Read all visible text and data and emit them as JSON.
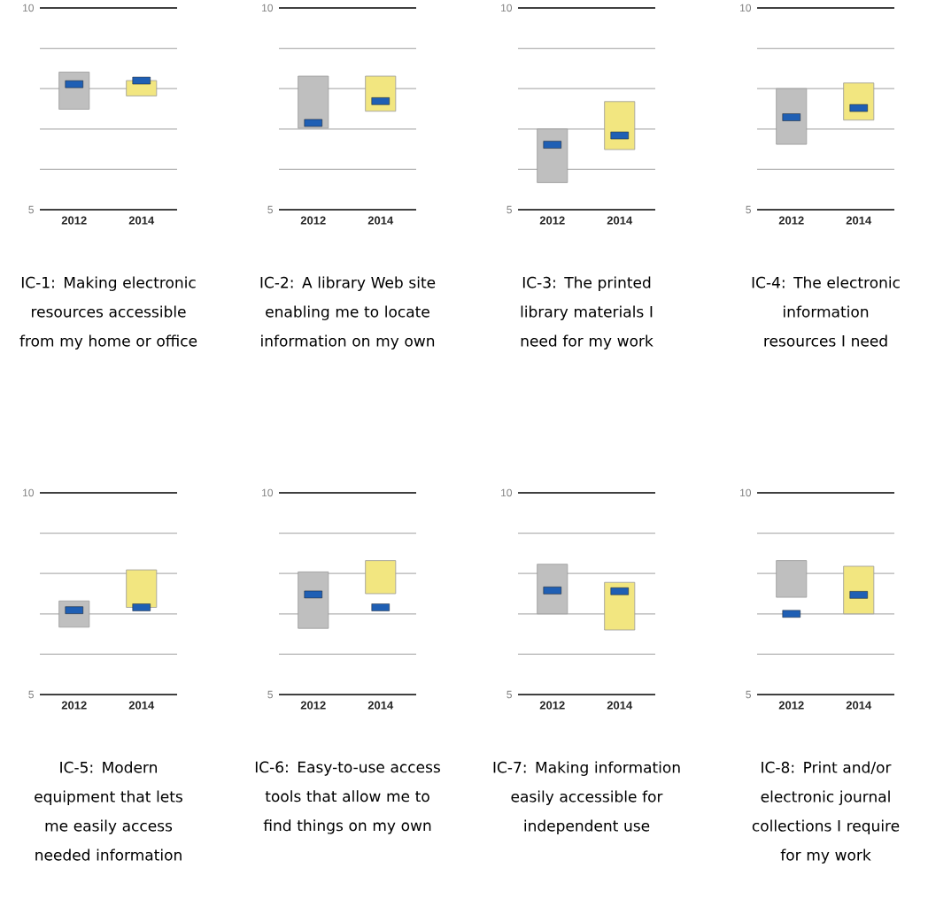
{
  "chart_data": [
    {
      "type": "bar",
      "title": "IC-1: Making electronic resources accessible from my home or office",
      "categories": [
        "2012",
        "2014"
      ],
      "ylim": [
        5,
        10
      ],
      "yticks": [
        5,
        {
          "value": 6,
          "label": null
        },
        {
          "value": 7,
          "label": null
        },
        {
          "value": 8,
          "label": null
        },
        {
          "value": 9,
          "label": null
        },
        10
      ],
      "grid": "y",
      "series": [
        {
          "type": "bar",
          "colors": [
            "#bfbfbf",
            "#f2e680"
          ],
          "base": [
            7.49,
            7.82
          ],
          "values": [
            0.92,
            0.38
          ]
        },
        {
          "type": "scatter",
          "color": "#1f5fb4",
          "values": [
            8.11,
            8.2
          ]
        }
      ]
    },
    {
      "type": "bar",
      "title": "IC-2: A library Web site enabling me to locate information on my own",
      "categories": [
        "2012",
        "2014"
      ],
      "ylim": [
        5,
        10
      ],
      "yticks": [
        5,
        {
          "value": 6,
          "label": null
        },
        {
          "value": 7,
          "label": null
        },
        {
          "value": 8,
          "label": null
        },
        {
          "value": 9,
          "label": null
        },
        10
      ],
      "grid": "y",
      "series": [
        {
          "type": "bar",
          "colors": [
            "#bfbfbf",
            "#f2e680"
          ],
          "base": [
            7.02,
            7.44
          ],
          "values": [
            1.29,
            0.87
          ]
        },
        {
          "type": "scatter",
          "color": "#1f5fb4",
          "values": [
            7.15,
            7.69
          ]
        }
      ]
    },
    {
      "type": "bar",
      "title": "IC-3: The printed library materials I need for my work",
      "categories": [
        "2012",
        "2014"
      ],
      "ylim": [
        5,
        10
      ],
      "yticks": [
        5,
        {
          "value": 6,
          "label": null
        },
        {
          "value": 7,
          "label": null
        },
        {
          "value": 8,
          "label": null
        },
        {
          "value": 9,
          "label": null
        },
        10
      ],
      "grid": "y",
      "series": [
        {
          "type": "bar",
          "colors": [
            "#bfbfbf",
            "#f2e680"
          ],
          "base": [
            5.67,
            6.49
          ],
          "values": [
            1.33,
            1.19
          ]
        },
        {
          "type": "scatter",
          "color": "#1f5fb4",
          "values": [
            6.61,
            6.84
          ]
        }
      ]
    },
    {
      "type": "bar",
      "title": "IC-4: The electronic information resources I need",
      "categories": [
        "2012",
        "2014"
      ],
      "ylim": [
        5,
        10
      ],
      "yticks": [
        5,
        {
          "value": 6,
          "label": null
        },
        {
          "value": 7,
          "label": null
        },
        {
          "value": 8,
          "label": null
        },
        {
          "value": 9,
          "label": null
        },
        10
      ],
      "grid": "y",
      "series": [
        {
          "type": "bar",
          "colors": [
            "#bfbfbf",
            "#f2e680"
          ],
          "base": [
            6.62,
            7.22
          ],
          "values": [
            1.38,
            0.92
          ]
        },
        {
          "type": "scatter",
          "color": "#1f5fb4",
          "values": [
            7.29,
            7.52
          ]
        }
      ]
    },
    {
      "type": "bar",
      "title": "IC-5: Modern equipment that lets me easily access needed information",
      "categories": [
        "2012",
        "2014"
      ],
      "ylim": [
        5,
        10
      ],
      "yticks": [
        5,
        {
          "value": 6,
          "label": null
        },
        {
          "value": 7,
          "label": null
        },
        {
          "value": 8,
          "label": null
        },
        {
          "value": 9,
          "label": null
        },
        10
      ],
      "grid": "y",
      "series": [
        {
          "type": "bar",
          "colors": [
            "#bfbfbf",
            "#f2e680"
          ],
          "base": [
            6.67,
            7.16
          ],
          "values": [
            0.65,
            0.93
          ]
        },
        {
          "type": "scatter",
          "color": "#1f5fb4",
          "values": [
            7.09,
            7.16
          ]
        }
      ]
    },
    {
      "type": "bar",
      "title": "IC-6: Easy-to-use access tools that allow me to find things on my own",
      "categories": [
        "2012",
        "2014"
      ],
      "ylim": [
        5,
        10
      ],
      "yticks": [
        5,
        {
          "value": 6,
          "label": null
        },
        {
          "value": 7,
          "label": null
        },
        {
          "value": 8,
          "label": null
        },
        {
          "value": 9,
          "label": null
        },
        10
      ],
      "grid": "y",
      "series": [
        {
          "type": "bar",
          "colors": [
            "#bfbfbf",
            "#f2e680"
          ],
          "base": [
            6.64,
            7.5
          ],
          "values": [
            1.4,
            0.82
          ]
        },
        {
          "type": "scatter",
          "color": "#1f5fb4",
          "values": [
            7.48,
            7.16
          ]
        }
      ]
    },
    {
      "type": "bar",
      "title": "IC-7: Making information easily accessible for independent use",
      "categories": [
        "2012",
        "2014"
      ],
      "ylim": [
        5,
        10
      ],
      "yticks": [
        5,
        {
          "value": 6,
          "label": null
        },
        {
          "value": 7,
          "label": null
        },
        {
          "value": 8,
          "label": null
        },
        {
          "value": 9,
          "label": null
        },
        10
      ],
      "grid": "y",
      "series": [
        {
          "type": "bar",
          "colors": [
            "#bfbfbf",
            "#f2e680"
          ],
          "base": [
            7.0,
            6.6
          ],
          "values": [
            1.23,
            1.18
          ]
        },
        {
          "type": "scatter",
          "color": "#1f5fb4",
          "values": [
            7.58,
            7.56
          ]
        }
      ]
    },
    {
      "type": "bar",
      "title": "IC-8: Print and/or electronic journal collections I require for my work",
      "categories": [
        "2012",
        "2014"
      ],
      "ylim": [
        5,
        10
      ],
      "yticks": [
        5,
        {
          "value": 6,
          "label": null
        },
        {
          "value": 7,
          "label": null
        },
        {
          "value": 8,
          "label": null
        },
        {
          "value": 9,
          "label": null
        },
        10
      ],
      "grid": "y",
      "series": [
        {
          "type": "bar",
          "colors": [
            "#bfbfbf",
            "#f2e680"
          ],
          "base": [
            7.41,
            7.0
          ],
          "values": [
            0.91,
            1.18
          ]
        },
        {
          "type": "scatter",
          "color": "#1f5fb4",
          "values": [
            7.0,
            7.47
          ]
        }
      ]
    }
  ]
}
